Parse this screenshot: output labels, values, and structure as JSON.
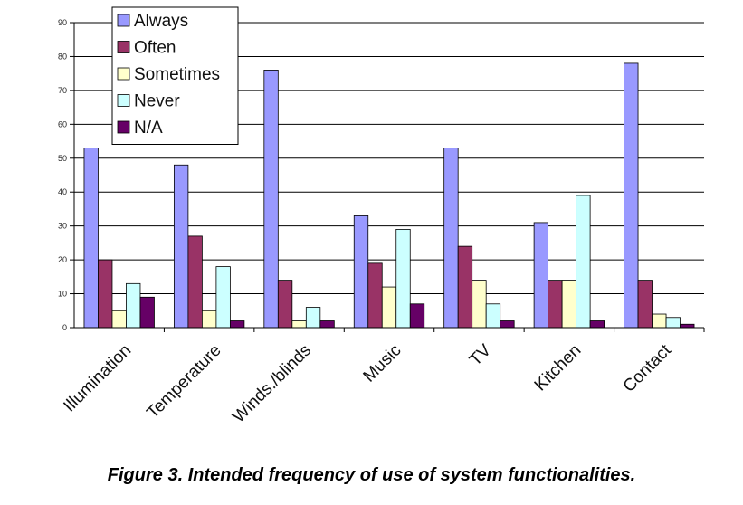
{
  "caption": "Figure 3. Intended frequency of use of system functionalities.",
  "chart_data": {
    "type": "bar",
    "title": "",
    "xlabel": "",
    "ylabel": "",
    "ylim": [
      0,
      90
    ],
    "yticks": [
      0,
      10,
      20,
      30,
      40,
      50,
      60,
      70,
      80,
      90
    ],
    "grid": true,
    "legend_position": "top-left",
    "categories": [
      "Illumination",
      "Temperature",
      "Winds./blinds",
      "Music",
      "TV",
      "Kitchen",
      "Contact"
    ],
    "series": [
      {
        "name": "Always",
        "color": "#9999ff",
        "values": [
          53,
          48,
          76,
          33,
          53,
          31,
          78
        ]
      },
      {
        "name": "Often",
        "color": "#993366",
        "values": [
          20,
          27,
          14,
          19,
          24,
          14,
          14
        ]
      },
      {
        "name": "Sometimes",
        "color": "#ffffcc",
        "values": [
          5,
          5,
          2,
          12,
          14,
          14,
          4
        ]
      },
      {
        "name": "Never",
        "color": "#ccffff",
        "values": [
          13,
          18,
          6,
          29,
          7,
          39,
          3
        ]
      },
      {
        "name": "N/A",
        "color": "#660066",
        "values": [
          9,
          2,
          2,
          7,
          2,
          2,
          1
        ]
      }
    ]
  }
}
